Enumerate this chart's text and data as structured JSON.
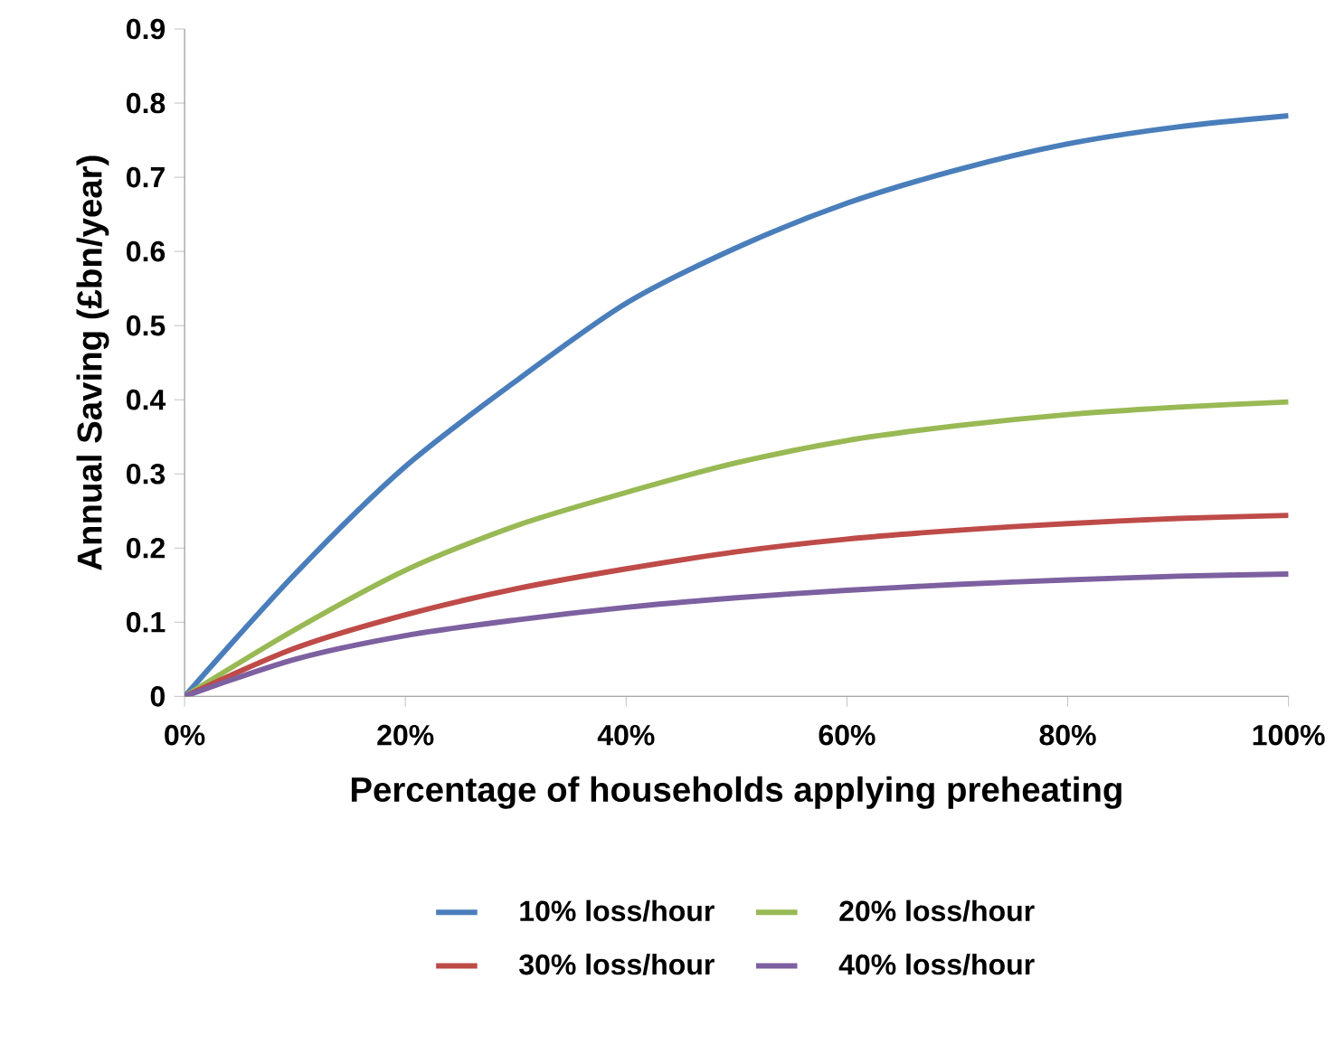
{
  "chart_data": {
    "type": "line",
    "xlabel": "Percentage of households applying preheating",
    "ylabel": "Annual Saving (£bn/year)",
    "x": [
      0,
      10,
      20,
      30,
      40,
      50,
      60,
      70,
      80,
      90,
      100
    ],
    "series": [
      {
        "name": "10% loss/hour",
        "color": "#4a7ebb",
        "values": [
          0,
          0.165,
          0.31,
          0.425,
          0.53,
          0.605,
          0.665,
          0.71,
          0.745,
          0.768,
          0.783
        ]
      },
      {
        "name": "20% loss/hour",
        "color": "#98b954",
        "values": [
          0,
          0.09,
          0.17,
          0.23,
          0.275,
          0.315,
          0.345,
          0.365,
          0.38,
          0.39,
          0.397
        ]
      },
      {
        "name": "30% loss/hour",
        "color": "#be4b48",
        "values": [
          0,
          0.065,
          0.11,
          0.145,
          0.172,
          0.195,
          0.212,
          0.224,
          0.233,
          0.24,
          0.244
        ]
      },
      {
        "name": "40% loss/hour",
        "color": "#7d60a0",
        "values": [
          0,
          0.05,
          0.082,
          0.103,
          0.12,
          0.133,
          0.143,
          0.151,
          0.157,
          0.162,
          0.165
        ]
      }
    ],
    "xlim": [
      0,
      100
    ],
    "xticks": [
      {
        "value": 0,
        "label": "0%"
      },
      {
        "value": 20,
        "label": "20%"
      },
      {
        "value": 40,
        "label": "40%"
      },
      {
        "value": 60,
        "label": "60%"
      },
      {
        "value": 80,
        "label": "80%"
      },
      {
        "value": 100,
        "label": "100%"
      }
    ],
    "ylim": [
      0,
      0.9
    ],
    "yticks": [
      0,
      0.1,
      0.2,
      0.3,
      0.4,
      0.5,
      0.6,
      0.7,
      0.8,
      0.9
    ],
    "grid": false,
    "legend": "bottom"
  }
}
